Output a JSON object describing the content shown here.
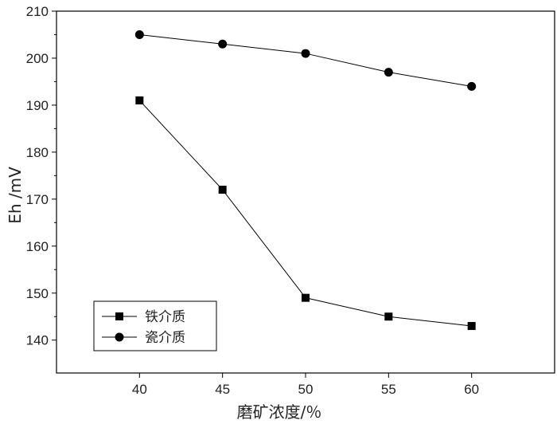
{
  "chart_data": {
    "type": "line",
    "title": "",
    "xlabel": "磨矿浓度/％",
    "ylabel": "Eh /mV",
    "x": [
      40,
      45,
      50,
      55,
      60
    ],
    "xlim": [
      35,
      65
    ],
    "ylim": [
      133,
      210
    ],
    "xticks": [
      40,
      45,
      50,
      55,
      60
    ],
    "yticks": [
      140,
      150,
      160,
      170,
      180,
      190,
      200,
      210
    ],
    "grid": false,
    "legend_position": "bottom-left",
    "series": [
      {
        "name": "铁介质",
        "marker": "square",
        "color": "#000000",
        "values": [
          191,
          172,
          149,
          145,
          143
        ]
      },
      {
        "name": "瓷介质",
        "marker": "circle",
        "color": "#000000",
        "values": [
          205,
          203,
          201,
          197,
          194
        ]
      }
    ]
  }
}
